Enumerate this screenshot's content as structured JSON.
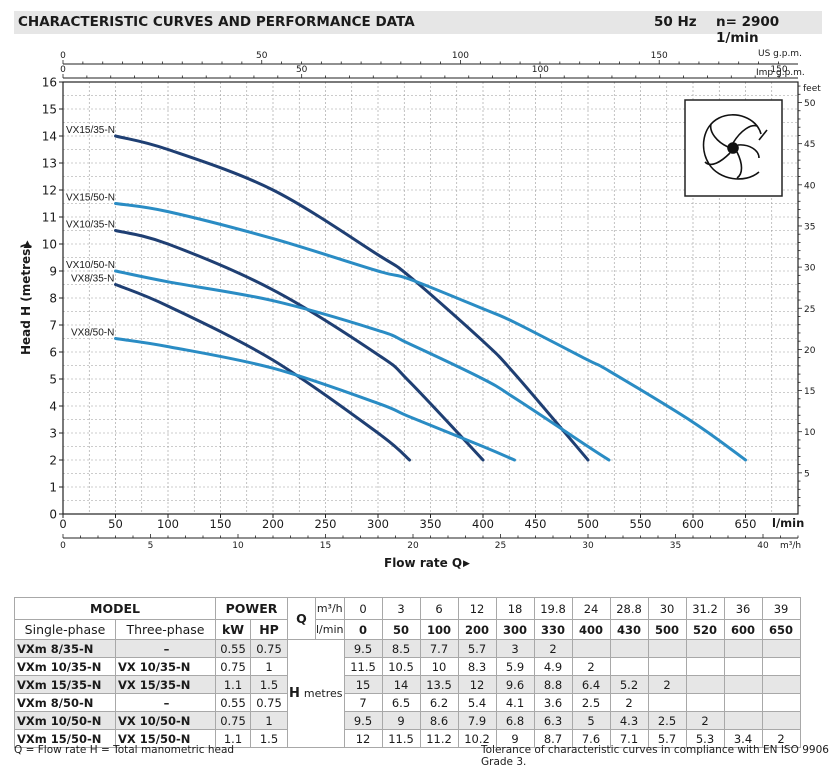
{
  "header": {
    "title": "CHARACTERISTIC CURVES AND PERFORMANCE DATA",
    "freq": "50 Hz",
    "speed": "n= 2900  1/min"
  },
  "chart_data": {
    "type": "line",
    "title": "CHARACTERISTIC CURVES AND PERFORMANCE DATA",
    "xlabel": "Flow rate  Q",
    "ylabel": "Head H (metres)",
    "xlim": [
      0,
      700
    ],
    "ylim": [
      0,
      16
    ],
    "x_unit": "l/min",
    "y_unit": "m",
    "grid": true,
    "y_ticks": [
      0,
      1,
      2,
      3,
      4,
      5,
      6,
      7,
      8,
      9,
      10,
      11,
      12,
      13,
      14,
      15,
      16
    ],
    "x_ticks": [
      0,
      50,
      100,
      150,
      200,
      250,
      300,
      350,
      400,
      450,
      500,
      550,
      600,
      650
    ],
    "right_axis": {
      "label": "feet",
      "ticks": [
        5,
        10,
        15,
        20,
        25,
        30,
        35,
        40,
        45,
        50
      ]
    },
    "top_axis_usgpm": {
      "label": "US g.p.m.",
      "ticks": [
        0,
        50,
        100,
        150
      ]
    },
    "top_axis_imp": {
      "label": "Imp g.p.m.",
      "ticks": [
        0,
        50,
        100,
        150
      ]
    },
    "bottom_axis_m3h": {
      "label": "m³/h",
      "ticks": [
        0,
        5,
        10,
        15,
        20,
        25,
        30,
        35,
        40
      ]
    },
    "series": [
      {
        "name": "VX15/35-N",
        "color": "#1f3f73",
        "x": [
          50,
          100,
          200,
          300,
          330,
          400,
          430,
          500
        ],
        "y": [
          14,
          13.5,
          12,
          9.6,
          8.8,
          6.4,
          5.2,
          2
        ]
      },
      {
        "name": "VX15/50-N",
        "color": "#2a8cc4",
        "x": [
          50,
          100,
          200,
          300,
          330,
          400,
          430,
          500,
          520,
          600,
          650
        ],
        "y": [
          11.5,
          11.2,
          10.2,
          9,
          8.7,
          7.6,
          7.1,
          5.7,
          5.3,
          3.4,
          2
        ]
      },
      {
        "name": "VX10/35-N",
        "color": "#1f3f73",
        "x": [
          50,
          100,
          200,
          300,
          330,
          400
        ],
        "y": [
          10.5,
          10,
          8.3,
          5.9,
          4.9,
          2
        ]
      },
      {
        "name": "VX10/50-N",
        "color": "#2a8cc4",
        "x": [
          50,
          100,
          200,
          300,
          330,
          400,
          430,
          500,
          520
        ],
        "y": [
          9,
          8.6,
          7.9,
          6.8,
          6.3,
          5,
          4.3,
          2.5,
          2
        ]
      },
      {
        "name": "VX8/35-N",
        "color": "#1f3f73",
        "x": [
          50,
          100,
          200,
          300,
          330
        ],
        "y": [
          8.5,
          7.7,
          5.7,
          3,
          2
        ]
      },
      {
        "name": "VX8/50-N",
        "color": "#2a8cc4",
        "x": [
          50,
          100,
          200,
          300,
          330,
          400,
          430
        ],
        "y": [
          6.5,
          6.2,
          5.4,
          4.1,
          3.6,
          2.5,
          2
        ]
      }
    ]
  },
  "table": {
    "model_header": "MODEL",
    "power_header": "POWER",
    "single_phase": "Single-phase",
    "three_phase": "Three-phase",
    "kw": "kW",
    "hp": "HP",
    "q_label": "Q",
    "q_m3h_unit": "m³/h",
    "q_lmin_unit": "l/min",
    "h_label": "H",
    "h_unit": "metres",
    "q_m3h": [
      "0",
      "3",
      "6",
      "12",
      "18",
      "19.8",
      "24",
      "28.8",
      "30",
      "31.2",
      "36",
      "39"
    ],
    "q_lmin": [
      "0",
      "50",
      "100",
      "200",
      "300",
      "330",
      "400",
      "430",
      "500",
      "520",
      "600",
      "650"
    ],
    "rows": [
      {
        "single": "VXm 8/35-N",
        "three": "–",
        "kw": "0.55",
        "hp": "0.75",
        "h": [
          "9.5",
          "8.5",
          "7.7",
          "5.7",
          "3",
          "2",
          "",
          "",
          "",
          "",
          "",
          ""
        ]
      },
      {
        "single": "VXm 10/35-N",
        "three": "VX 10/35-N",
        "kw": "0.75",
        "hp": "1",
        "h": [
          "11.5",
          "10.5",
          "10",
          "8.3",
          "5.9",
          "4.9",
          "2",
          "",
          "",
          "",
          "",
          ""
        ]
      },
      {
        "single": "VXm 15/35-N",
        "three": "VX 15/35-N",
        "kw": "1.1",
        "hp": "1.5",
        "h": [
          "15",
          "14",
          "13.5",
          "12",
          "9.6",
          "8.8",
          "6.4",
          "5.2",
          "2",
          "",
          "",
          ""
        ]
      },
      {
        "single": "VXm 8/50-N",
        "three": "–",
        "kw": "0.55",
        "hp": "0.75",
        "h": [
          "7",
          "6.5",
          "6.2",
          "5.4",
          "4.1",
          "3.6",
          "2.5",
          "2",
          "",
          "",
          "",
          ""
        ]
      },
      {
        "single": "VXm 10/50-N",
        "three": "VX 10/50-N",
        "kw": "0.75",
        "hp": "1",
        "h": [
          "9.5",
          "9",
          "8.6",
          "7.9",
          "6.8",
          "6.3",
          "5",
          "4.3",
          "2.5",
          "2",
          "",
          ""
        ]
      },
      {
        "single": "VXm 15/50-N",
        "three": "VX 15/50-N",
        "kw": "1.1",
        "hp": "1.5",
        "h": [
          "12",
          "11.5",
          "11.2",
          "10.2",
          "9",
          "8.7",
          "7.6",
          "7.1",
          "5.7",
          "5.3",
          "3.4",
          "2"
        ]
      }
    ]
  },
  "footnote_left": "Q = Flow rate   H = Total manometric head",
  "footnote_right": "Tolerance of characteristic curves in compliance with EN ISO 9906 Grade 3."
}
